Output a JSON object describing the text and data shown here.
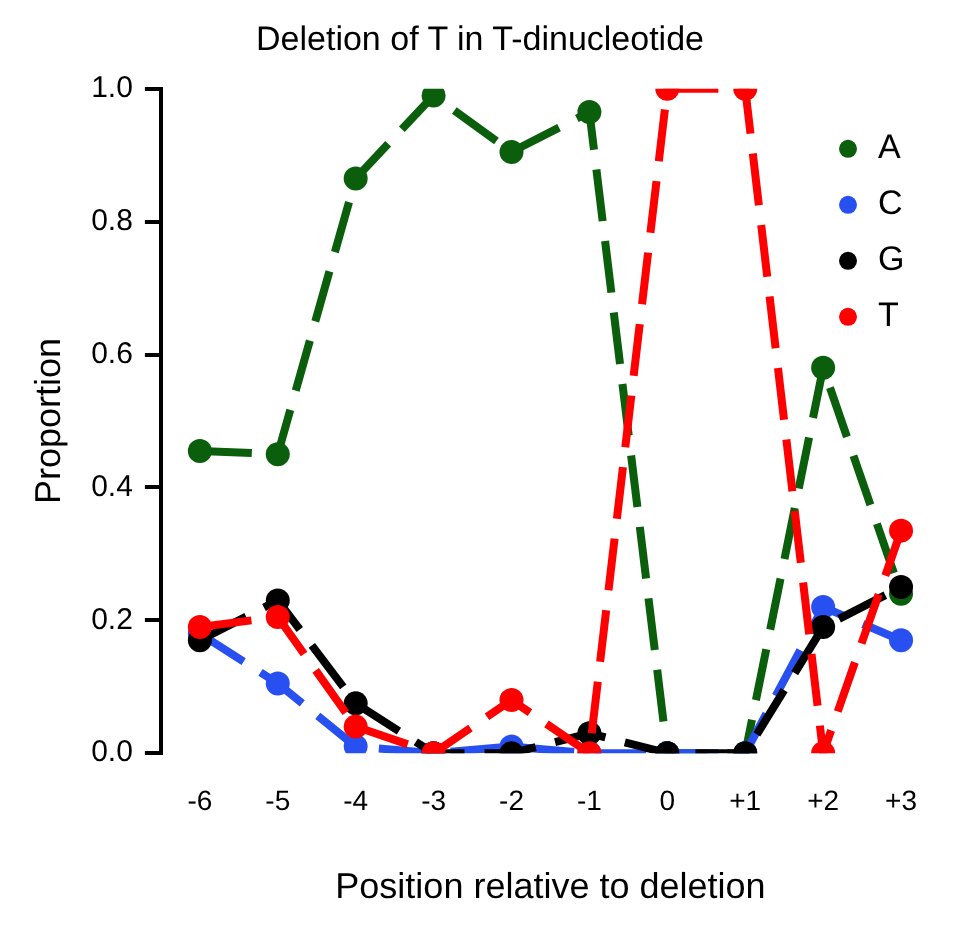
{
  "chart_data": {
    "type": "line",
    "title": "Deletion of T in T-dinucleotide",
    "xlabel": "Position relative to deletion",
    "ylabel": "Proportion",
    "categories": [
      "-6",
      "-5",
      "-4",
      "-3",
      "-2",
      "-1",
      "0",
      "+1",
      "+2",
      "+3"
    ],
    "series": [
      {
        "name": "A",
        "color": "#0b5e0b",
        "values": [
          0.455,
          0.45,
          0.865,
          0.99,
          0.905,
          0.965,
          0,
          0,
          0.58,
          0.24
        ]
      },
      {
        "name": "C",
        "color": "#2850f0",
        "values": [
          0.18,
          0.105,
          0.01,
          0,
          0.01,
          0,
          0,
          0,
          0.22,
          0.17
        ]
      },
      {
        "name": "G",
        "color": "#000000",
        "values": [
          0.17,
          0.23,
          0.075,
          0,
          0,
          0.03,
          0,
          0,
          0.19,
          0.25
        ]
      },
      {
        "name": "T",
        "color": "#ff0000",
        "values": [
          0.19,
          0.205,
          0.04,
          0,
          0.08,
          0,
          1.0,
          1.0,
          0,
          0.335
        ]
      }
    ],
    "ylim": [
      0,
      1
    ],
    "yticks": [
      {
        "value": 0,
        "label": "0.0"
      },
      {
        "value": 0.2,
        "label": "0.2"
      },
      {
        "value": 0.4,
        "label": "0.4"
      },
      {
        "value": 0.6,
        "label": "0.6"
      },
      {
        "value": 0.8,
        "label": "0.8"
      },
      {
        "value": 1,
        "label": "1.0"
      }
    ],
    "grid": false,
    "legend": "top right",
    "marker": "circle",
    "line_style": "dashed"
  }
}
